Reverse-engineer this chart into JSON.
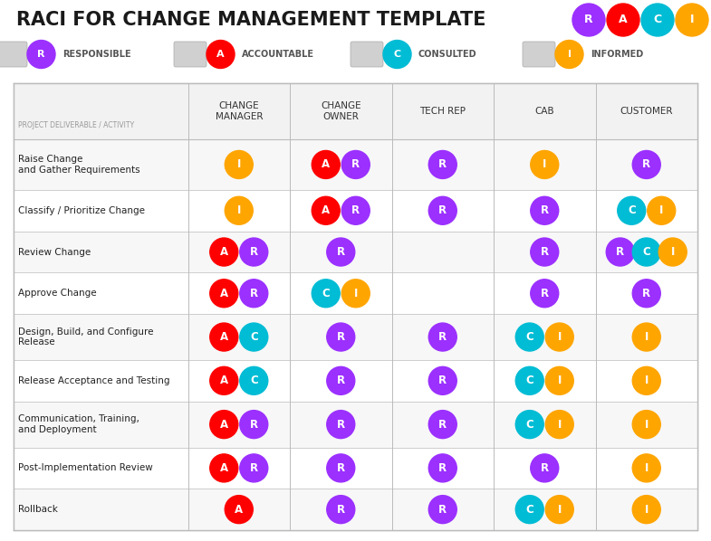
{
  "title": "RACI FOR CHANGE MANAGEMENT TEMPLATE",
  "title_fontsize": 15,
  "background_color": "#ffffff",
  "colors": {
    "R": "#9B30FF",
    "A": "#FF0000",
    "C": "#00BCD4",
    "I": "#FFA500"
  },
  "legend_items": [
    {
      "letter": "R",
      "color": "#9B30FF",
      "label": "RESPONSIBLE"
    },
    {
      "letter": "A",
      "color": "#FF0000",
      "label": "ACCOUNTABLE"
    },
    {
      "letter": "C",
      "color": "#00BCD4",
      "label": "CONSULTED"
    },
    {
      "letter": "I",
      "color": "#FFA500",
      "label": "INFORMED"
    }
  ],
  "corner_circles": [
    {
      "letter": "R",
      "color": "#9B30FF"
    },
    {
      "letter": "A",
      "color": "#FF0000"
    },
    {
      "letter": "C",
      "color": "#00BCD4"
    },
    {
      "letter": "I",
      "color": "#FFA500"
    }
  ],
  "col_headers": [
    "CHANGE\nMANAGER",
    "CHANGE\nOWNER",
    "TECH REP",
    "CAB",
    "CUSTOMER"
  ],
  "row_label_header": "PROJECT DELIVERABLE / ACTIVITY",
  "rows": [
    {
      "label": "Raise Change\nand Gather Requirements",
      "cells": [
        [
          {
            "letter": "I",
            "color": "#FFA500"
          }
        ],
        [
          {
            "letter": "A",
            "color": "#FF0000"
          },
          {
            "letter": "R",
            "color": "#9B30FF"
          }
        ],
        [
          {
            "letter": "R",
            "color": "#9B30FF"
          }
        ],
        [
          {
            "letter": "I",
            "color": "#FFA500"
          }
        ],
        [
          {
            "letter": "R",
            "color": "#9B30FF"
          }
        ]
      ]
    },
    {
      "label": "Classify / Prioritize Change",
      "cells": [
        [
          {
            "letter": "I",
            "color": "#FFA500"
          }
        ],
        [
          {
            "letter": "A",
            "color": "#FF0000"
          },
          {
            "letter": "R",
            "color": "#9B30FF"
          }
        ],
        [
          {
            "letter": "R",
            "color": "#9B30FF"
          }
        ],
        [
          {
            "letter": "R",
            "color": "#9B30FF"
          }
        ],
        [
          {
            "letter": "C",
            "color": "#00BCD4"
          },
          {
            "letter": "I",
            "color": "#FFA500"
          }
        ]
      ]
    },
    {
      "label": "Review Change",
      "cells": [
        [
          {
            "letter": "A",
            "color": "#FF0000"
          },
          {
            "letter": "R",
            "color": "#9B30FF"
          }
        ],
        [
          {
            "letter": "R",
            "color": "#9B30FF"
          }
        ],
        [],
        [
          {
            "letter": "R",
            "color": "#9B30FF"
          }
        ],
        [
          {
            "letter": "R",
            "color": "#9B30FF"
          },
          {
            "letter": "C",
            "color": "#00BCD4"
          },
          {
            "letter": "I",
            "color": "#FFA500"
          }
        ]
      ]
    },
    {
      "label": "Approve Change",
      "cells": [
        [
          {
            "letter": "A",
            "color": "#FF0000"
          },
          {
            "letter": "R",
            "color": "#9B30FF"
          }
        ],
        [
          {
            "letter": "C",
            "color": "#00BCD4"
          },
          {
            "letter": "I",
            "color": "#FFA500"
          }
        ],
        [],
        [
          {
            "letter": "R",
            "color": "#9B30FF"
          }
        ],
        [
          {
            "letter": "R",
            "color": "#9B30FF"
          }
        ]
      ]
    },
    {
      "label": "Design, Build, and Configure\nRelease",
      "cells": [
        [
          {
            "letter": "A",
            "color": "#FF0000"
          },
          {
            "letter": "C",
            "color": "#00BCD4"
          }
        ],
        [
          {
            "letter": "R",
            "color": "#9B30FF"
          }
        ],
        [
          {
            "letter": "R",
            "color": "#9B30FF"
          }
        ],
        [
          {
            "letter": "C",
            "color": "#00BCD4"
          },
          {
            "letter": "I",
            "color": "#FFA500"
          }
        ],
        [
          {
            "letter": "I",
            "color": "#FFA500"
          }
        ]
      ]
    },
    {
      "label": "Release Acceptance and Testing",
      "cells": [
        [
          {
            "letter": "A",
            "color": "#FF0000"
          },
          {
            "letter": "C",
            "color": "#00BCD4"
          }
        ],
        [
          {
            "letter": "R",
            "color": "#9B30FF"
          }
        ],
        [
          {
            "letter": "R",
            "color": "#9B30FF"
          }
        ],
        [
          {
            "letter": "C",
            "color": "#00BCD4"
          },
          {
            "letter": "I",
            "color": "#FFA500"
          }
        ],
        [
          {
            "letter": "I",
            "color": "#FFA500"
          }
        ]
      ]
    },
    {
      "label": "Communication, Training,\nand Deployment",
      "cells": [
        [
          {
            "letter": "A",
            "color": "#FF0000"
          },
          {
            "letter": "R",
            "color": "#9B30FF"
          }
        ],
        [
          {
            "letter": "R",
            "color": "#9B30FF"
          }
        ],
        [
          {
            "letter": "R",
            "color": "#9B30FF"
          }
        ],
        [
          {
            "letter": "C",
            "color": "#00BCD4"
          },
          {
            "letter": "I",
            "color": "#FFA500"
          }
        ],
        [
          {
            "letter": "I",
            "color": "#FFA500"
          }
        ]
      ]
    },
    {
      "label": "Post-Implementation Review",
      "cells": [
        [
          {
            "letter": "A",
            "color": "#FF0000"
          },
          {
            "letter": "R",
            "color": "#9B30FF"
          }
        ],
        [
          {
            "letter": "R",
            "color": "#9B30FF"
          }
        ],
        [
          {
            "letter": "R",
            "color": "#9B30FF"
          }
        ],
        [
          {
            "letter": "R",
            "color": "#9B30FF"
          }
        ],
        [
          {
            "letter": "I",
            "color": "#FFA500"
          }
        ]
      ]
    },
    {
      "label": "Rollback",
      "cells": [
        [
          {
            "letter": "A",
            "color": "#FF0000"
          }
        ],
        [
          {
            "letter": "R",
            "color": "#9B30FF"
          }
        ],
        [
          {
            "letter": "R",
            "color": "#9B30FF"
          }
        ],
        [
          {
            "letter": "C",
            "color": "#00BCD4"
          },
          {
            "letter": "I",
            "color": "#FFA500"
          }
        ],
        [
          {
            "letter": "I",
            "color": "#FFA500"
          }
        ]
      ]
    }
  ]
}
